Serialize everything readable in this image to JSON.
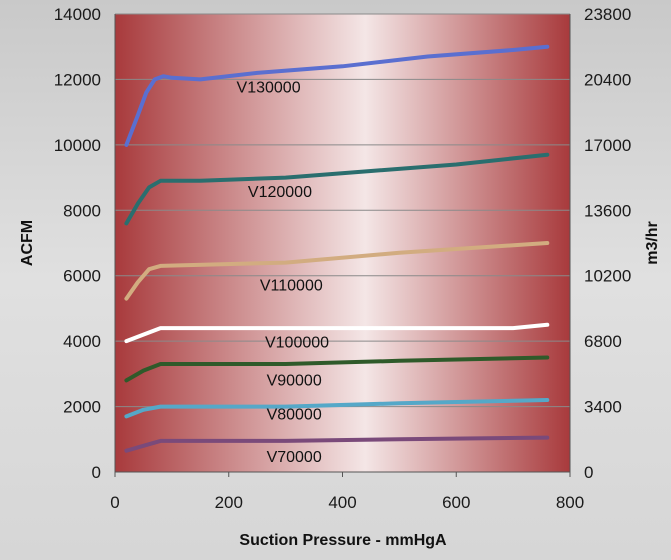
{
  "chart_data": {
    "type": "line",
    "title": "",
    "xlabel": "Suction Pressure - mmHgA",
    "ylabel": "ACFM",
    "y2label": "m3/hr",
    "xlim": [
      0,
      800
    ],
    "ylim": [
      0,
      14000
    ],
    "y2lim": [
      0,
      23800
    ],
    "xticks": [
      0,
      200,
      400,
      600,
      800
    ],
    "yticks": [
      0,
      2000,
      4000,
      6000,
      8000,
      10000,
      12000,
      14000
    ],
    "y2ticks": [
      0,
      3400,
      6800,
      10200,
      13600,
      17000,
      20400,
      23800
    ],
    "grid": true,
    "colors": {
      "plot_dark": "#a83a3c",
      "plot_light": "#f4e6e6"
    },
    "series": [
      {
        "name": "V130000",
        "color": "#5a6fd0",
        "x": [
          20,
          40,
          55,
          70,
          85,
          100,
          150,
          250,
          400,
          550,
          700,
          760
        ],
        "y": [
          10000,
          10900,
          11600,
          12000,
          12100,
          12050,
          12000,
          12200,
          12400,
          12700,
          12900,
          13000
        ]
      },
      {
        "name": "V120000",
        "color": "#2a6e6e",
        "x": [
          20,
          40,
          60,
          80,
          150,
          300,
          450,
          600,
          760
        ],
        "y": [
          7600,
          8200,
          8700,
          8900,
          8900,
          9000,
          9200,
          9400,
          9700
        ]
      },
      {
        "name": "V110000",
        "color": "#d2ac80",
        "x": [
          20,
          40,
          60,
          80,
          300,
          500,
          760
        ],
        "y": [
          5300,
          5800,
          6200,
          6300,
          6400,
          6700,
          7000
        ]
      },
      {
        "name": "V100000",
        "color": "#ffffff",
        "x": [
          20,
          50,
          80,
          300,
          500,
          700,
          760
        ],
        "y": [
          4000,
          4200,
          4400,
          4400,
          4400,
          4400,
          4500
        ]
      },
      {
        "name": "V90000",
        "color": "#2f5a2a",
        "x": [
          20,
          50,
          80,
          300,
          500,
          760
        ],
        "y": [
          2800,
          3100,
          3300,
          3300,
          3400,
          3500
        ]
      },
      {
        "name": "V80000",
        "color": "#55a8c8",
        "x": [
          20,
          50,
          80,
          300,
          500,
          760
        ],
        "y": [
          1700,
          1900,
          2000,
          2000,
          2100,
          2200
        ]
      },
      {
        "name": "V70000",
        "color": "#7a4a7a",
        "x": [
          20,
          50,
          80,
          300,
          500,
          760
        ],
        "y": [
          650,
          800,
          950,
          950,
          1000,
          1050
        ]
      }
    ],
    "labels": [
      {
        "text": "V130000",
        "x": 270,
        "y": 11600
      },
      {
        "text": "V120000",
        "x": 290,
        "y": 8400
      },
      {
        "text": "V110000",
        "x": 310,
        "y": 5550
      },
      {
        "text": "V100000",
        "x": 320,
        "y": 3800
      },
      {
        "text": "V90000",
        "x": 315,
        "y": 2650
      },
      {
        "text": "V80000",
        "x": 315,
        "y": 1600
      },
      {
        "text": "V70000",
        "x": 315,
        "y": 300
      }
    ]
  }
}
